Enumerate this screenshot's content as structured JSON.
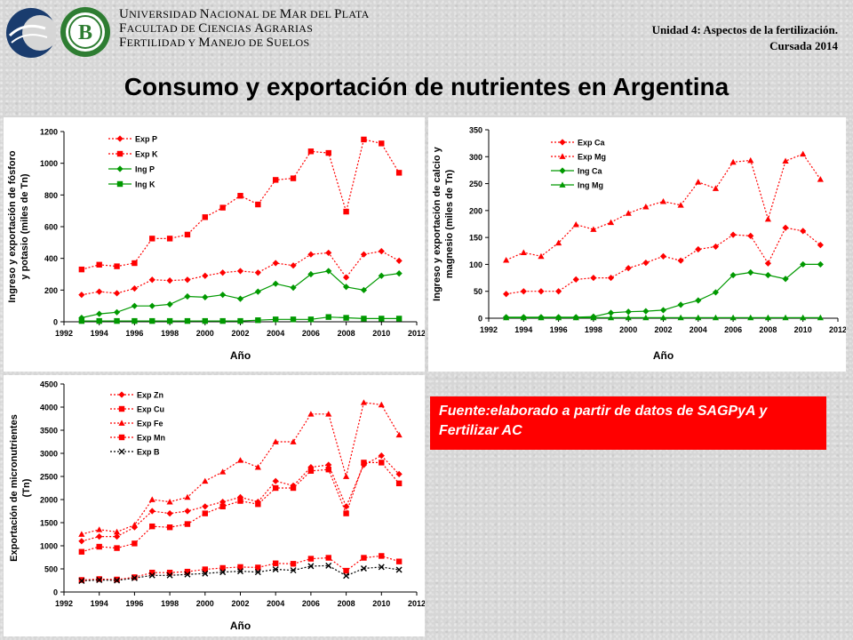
{
  "header": {
    "inst_line1": [
      [
        "U",
        "NIVERSIDAD "
      ],
      [
        "N",
        "ACIONAL DE "
      ],
      [
        "M",
        "AR DEL "
      ],
      [
        "P",
        "LATA"
      ]
    ],
    "inst_line2": [
      [
        "F",
        "ACULTAD DE "
      ],
      [
        "C",
        "IENCIAS "
      ],
      [
        "A",
        "GRARIAS"
      ]
    ],
    "inst_line3": [
      [
        "F",
        "ERTILIDAD Y "
      ],
      [
        "M",
        "ANEJO DE "
      ],
      [
        "S",
        "UELOS"
      ]
    ],
    "unit": "Unidad 4: Aspectos de la fertilización.",
    "cursada": "Cursada 2014",
    "logo_letter": "B"
  },
  "title": "Consumo y exportación de nutrientes en Argentina",
  "source": "Fuente:elaborado a partir de datos de SAGPyA y Fertilizar AC",
  "colors": {
    "red": "#ff0000",
    "green": "#009900",
    "black": "#000000"
  },
  "chart_data": [
    {
      "type": "line",
      "ylabel": [
        "Ingreso y exportación de fósforo",
        "y potasio (miles de Tn)"
      ],
      "xlabel": "Año",
      "xlim": [
        1992,
        2012
      ],
      "xticks": [
        1992,
        1994,
        1996,
        1998,
        2000,
        2002,
        2004,
        2006,
        2008,
        2010,
        2012
      ],
      "ylim": [
        0,
        1200
      ],
      "yticks": [
        0,
        200,
        400,
        600,
        800,
        1000,
        1200
      ],
      "legend_position": "top-left",
      "x": [
        1993,
        1994,
        1995,
        1996,
        1997,
        1998,
        1999,
        2000,
        2001,
        2002,
        2003,
        2004,
        2005,
        2006,
        2007,
        2008,
        2009,
        2010,
        2011
      ],
      "series": [
        {
          "name": "Exp P",
          "color": "#ff0000",
          "dash": true,
          "marker": "diamond",
          "values": [
            170,
            190,
            180,
            210,
            265,
            260,
            265,
            290,
            310,
            320,
            310,
            370,
            355,
            425,
            435,
            280,
            425,
            445,
            385
          ]
        },
        {
          "name": "Exp K",
          "color": "#ff0000",
          "dash": true,
          "marker": "square",
          "values": [
            330,
            360,
            350,
            370,
            525,
            525,
            550,
            660,
            720,
            795,
            740,
            895,
            905,
            1075,
            1065,
            695,
            1150,
            1125,
            940
          ]
        },
        {
          "name": "Ing P",
          "color": "#009900",
          "dash": false,
          "marker": "diamond",
          "values": [
            25,
            50,
            60,
            100,
            100,
            110,
            160,
            155,
            170,
            145,
            190,
            240,
            215,
            300,
            320,
            220,
            200,
            290,
            305
          ]
        },
        {
          "name": "Ing K",
          "color": "#009900",
          "dash": false,
          "marker": "square",
          "values": [
            5,
            5,
            5,
            5,
            5,
            5,
            5,
            5,
            5,
            5,
            10,
            15,
            15,
            15,
            30,
            25,
            20,
            20,
            20
          ]
        }
      ]
    },
    {
      "type": "line",
      "ylabel": [
        "Ingreso y exportación de calcio y",
        "magnesio (miles de Tn)"
      ],
      "xlabel": "Año",
      "xlim": [
        1992,
        2012
      ],
      "xticks": [
        1992,
        1994,
        1996,
        1998,
        2000,
        2002,
        2004,
        2006,
        2008,
        2010,
        2012
      ],
      "ylim": [
        0,
        350
      ],
      "yticks": [
        0,
        50,
        100,
        150,
        200,
        250,
        300,
        350
      ],
      "legend_position": "top-left",
      "x": [
        1993,
        1994,
        1995,
        1996,
        1997,
        1998,
        1999,
        2000,
        2001,
        2002,
        2003,
        2004,
        2005,
        2006,
        2007,
        2008,
        2009,
        2010,
        2011
      ],
      "series": [
        {
          "name": "Exp Ca",
          "color": "#ff0000",
          "dash": true,
          "marker": "diamond",
          "values": [
            45,
            50,
            50,
            50,
            72,
            75,
            75,
            93,
            103,
            115,
            107,
            128,
            133,
            155,
            153,
            102,
            168,
            162,
            136
          ]
        },
        {
          "name": "Exp Mg",
          "color": "#ff0000",
          "dash": true,
          "marker": "triangle",
          "values": [
            108,
            122,
            115,
            140,
            174,
            165,
            178,
            195,
            207,
            217,
            210,
            253,
            241,
            290,
            293,
            184,
            292,
            305,
            258
          ]
        },
        {
          "name": "Ing Ca",
          "color": "#009900",
          "dash": false,
          "marker": "diamond",
          "values": [
            2,
            2,
            2,
            2,
            2,
            3,
            10,
            12,
            13,
            15,
            25,
            33,
            48,
            80,
            85,
            80,
            73,
            100,
            100
          ]
        },
        {
          "name": "Ing Mg",
          "color": "#009900",
          "dash": false,
          "marker": "triangle",
          "values": [
            1,
            1,
            1,
            1,
            1,
            1,
            1,
            1,
            1,
            1,
            1,
            1,
            1,
            1,
            1,
            1,
            1,
            1,
            1
          ]
        }
      ]
    },
    {
      "type": "line",
      "ylabel": [
        "Exportación de micronutrientes",
        "(Tn)"
      ],
      "xlabel": "Año",
      "xlim": [
        1992,
        2012
      ],
      "xticks": [
        1992,
        1994,
        1996,
        1998,
        2000,
        2002,
        2004,
        2006,
        2008,
        2010,
        2012
      ],
      "ylim": [
        0,
        4500
      ],
      "yticks": [
        0,
        500,
        1000,
        1500,
        2000,
        2500,
        3000,
        3500,
        4000,
        4500
      ],
      "legend_position": "top-left",
      "x": [
        1993,
        1994,
        1995,
        1996,
        1997,
        1998,
        1999,
        2000,
        2001,
        2002,
        2003,
        2004,
        2005,
        2006,
        2007,
        2008,
        2009,
        2010,
        2011
      ],
      "series": [
        {
          "name": "Exp Zn",
          "color": "#ff0000",
          "dash": true,
          "marker": "diamond",
          "values": [
            1100,
            1200,
            1200,
            1400,
            1750,
            1700,
            1750,
            1850,
            1950,
            2050,
            1950,
            2400,
            2300,
            2700,
            2750,
            1850,
            2750,
            2950,
            2550
          ]
        },
        {
          "name": "Exp Cu",
          "color": "#ff0000",
          "dash": true,
          "marker": "square",
          "values": [
            260,
            280,
            270,
            320,
            420,
            420,
            440,
            490,
            520,
            540,
            530,
            620,
            610,
            720,
            740,
            460,
            740,
            780,
            660
          ]
        },
        {
          "name": "Exp Fe",
          "color": "#ff0000",
          "dash": true,
          "marker": "triangle",
          "values": [
            1250,
            1350,
            1300,
            1450,
            2000,
            1950,
            2050,
            2400,
            2600,
            2850,
            2700,
            3250,
            3250,
            3850,
            3850,
            2500,
            4100,
            4050,
            3400
          ]
        },
        {
          "name": "Exp Mn",
          "color": "#ff0000",
          "dash": true,
          "marker": "square",
          "values": [
            870,
            980,
            950,
            1050,
            1420,
            1400,
            1470,
            1700,
            1850,
            1970,
            1900,
            2250,
            2250,
            2620,
            2650,
            1700,
            2800,
            2800,
            2350
          ]
        },
        {
          "name": "Exp B",
          "color": "#000000",
          "dash": true,
          "marker": "cross",
          "values": [
            240,
            260,
            250,
            300,
            360,
            360,
            380,
            400,
            430,
            450,
            430,
            490,
            470,
            560,
            570,
            350,
            510,
            540,
            480
          ]
        }
      ]
    }
  ]
}
